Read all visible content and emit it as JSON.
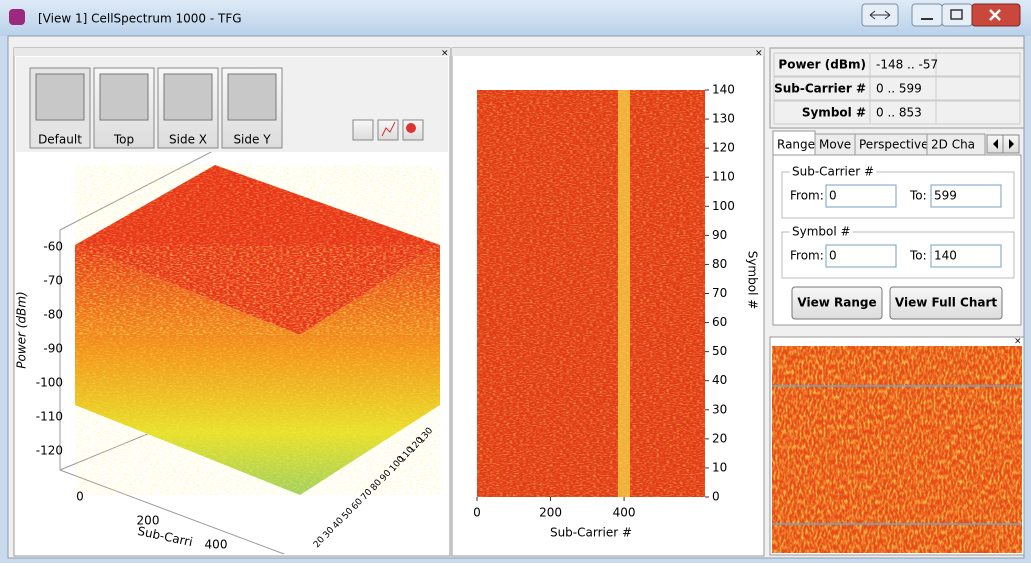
{
  "window": {
    "title": "[View 1] CellSpectrum 1000 - TFG"
  },
  "view_buttons": [
    "Default",
    "Top",
    "Side X",
    "Side Y"
  ],
  "plot3d": {
    "y_label": "Power (dBm)",
    "z_ticks": [
      -60,
      -70,
      -80,
      -90,
      -100,
      -110,
      -120
    ],
    "x_ticks": [
      0,
      200,
      400
    ],
    "x_label": "Sub-Carri",
    "depth_ticks": [
      130,
      120,
      110,
      100,
      90,
      80,
      70,
      60,
      50,
      40,
      30,
      20
    ]
  },
  "spectrogram": {
    "x_label": "Sub-Carrier #",
    "y_label": "Symbol #",
    "xlim": [
      0,
      620
    ],
    "ylim": [
      0,
      140
    ],
    "x_ticks": [
      0,
      200,
      400
    ],
    "y_ticks": [
      0,
      10,
      20,
      30,
      40,
      50,
      60,
      70,
      80,
      90,
      100,
      110,
      120,
      130,
      140
    ]
  },
  "info_table": {
    "rows": [
      [
        "Power (dBm)",
        "-148 .. -57"
      ],
      [
        "Sub-Carrier #",
        "0 .. 599"
      ],
      [
        "Symbol #",
        "0 .. 853"
      ]
    ]
  },
  "tabs": [
    "Range",
    "Move",
    "Perspective",
    "2D Cha"
  ],
  "range_form": {
    "subcarrier": {
      "title": "Sub-Carrier #",
      "from_label": "From:",
      "from": "0",
      "to_label": "To:",
      "to": "599"
    },
    "symbol": {
      "title": "Symbol #",
      "from_label": "From:",
      "from": "0",
      "to_label": "To:",
      "to": "140"
    }
  },
  "buttons": [
    "View Range",
    "View Full Chart"
  ]
}
